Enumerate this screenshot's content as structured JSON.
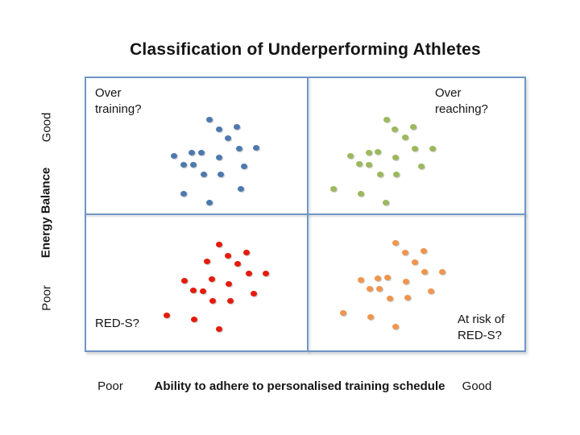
{
  "title": "Classification of Underperforming Athletes",
  "y_axis": {
    "label": "Energy Balance",
    "top_label": "Good",
    "bottom_label": "Poor"
  },
  "x_axis": {
    "label": "Ability to adhere to personalised training schedule",
    "left_label": "Poor",
    "right_label": "Good"
  },
  "quadrant_labels": {
    "top_left": [
      "Over",
      "training?"
    ],
    "top_right": [
      "Over",
      "reaching?"
    ],
    "bottom_left": [
      "RED-S?"
    ],
    "bottom_right": [
      "At risk of",
      "RED-S?"
    ]
  },
  "colors": {
    "quadrant_border": "#6f96c6",
    "blue_dots": "#4d79af",
    "green_dots": "#9bb95c",
    "red_dots": "#e51b0d",
    "orange_dots": "#f0954d",
    "text": "#151515"
  },
  "chart_data": {
    "type": "scatter",
    "title": "Classification of Underperforming Athletes",
    "xlabel": "Ability to adhere to personalised training schedule",
    "ylabel": "Energy Balance",
    "x_axis_ticks": [
      "Poor",
      "Good"
    ],
    "y_axis_ticks": [
      "Poor",
      "Good"
    ],
    "layout": "2x2 quadrant grid, no numeric axes, no legend, no gridlines",
    "axes_note": "Qualitative axes. Point coordinates are percent of plot area: x 0=Poor(left) to 100=Good(right); y 0=Poor(bottom) to 100=Good(top).",
    "series": [
      {
        "name": "Over training?",
        "quadrant": "top-left",
        "color": "#4d79af",
        "points": [
          [
            28.3,
            84.5
          ],
          [
            30.4,
            80.9
          ],
          [
            34.5,
            81.7
          ],
          [
            32.5,
            77.6
          ],
          [
            35.0,
            73.9
          ],
          [
            38.9,
            74.0
          ],
          [
            20.2,
            71.3
          ],
          [
            24.3,
            72.4
          ],
          [
            26.5,
            72.5
          ],
          [
            30.5,
            70.6
          ],
          [
            22.4,
            68.1
          ],
          [
            24.6,
            67.9
          ],
          [
            36.2,
            67.3
          ],
          [
            27.0,
            64.6
          ],
          [
            30.8,
            64.6
          ],
          [
            35.4,
            59.2
          ],
          [
            22.5,
            57.5
          ],
          [
            28.3,
            54.1
          ]
        ]
      },
      {
        "name": "Over reaching?",
        "quadrant": "top-right",
        "color": "#9bb95c",
        "points": [
          [
            68.4,
            84.5
          ],
          [
            70.3,
            80.9
          ],
          [
            74.4,
            81.8
          ],
          [
            72.7,
            77.8
          ],
          [
            74.8,
            73.8
          ],
          [
            78.8,
            73.9
          ],
          [
            60.2,
            71.3
          ],
          [
            64.4,
            72.5
          ],
          [
            66.5,
            72.6
          ],
          [
            70.4,
            70.6
          ],
          [
            62.3,
            68.2
          ],
          [
            64.5,
            68.1
          ],
          [
            76.2,
            67.3
          ],
          [
            66.9,
            64.5
          ],
          [
            70.7,
            64.5
          ],
          [
            56.3,
            59.3
          ],
          [
            62.5,
            57.5
          ],
          [
            68.2,
            54.1
          ]
        ]
      },
      {
        "name": "RED-S?",
        "quadrant": "bottom-left",
        "color": "#e51b0d",
        "points": [
          [
            30.5,
            39.0
          ],
          [
            32.5,
            35.0
          ],
          [
            36.6,
            36.2
          ],
          [
            27.8,
            32.9
          ],
          [
            34.7,
            31.9
          ],
          [
            37.2,
            28.4
          ],
          [
            41.0,
            28.4
          ],
          [
            22.6,
            25.9
          ],
          [
            28.8,
            26.4
          ],
          [
            32.7,
            24.6
          ],
          [
            24.6,
            22.4
          ],
          [
            26.8,
            22.2
          ],
          [
            38.4,
            21.3
          ],
          [
            29.0,
            18.7
          ],
          [
            33.0,
            18.7
          ],
          [
            18.6,
            13.2
          ],
          [
            24.8,
            11.8
          ],
          [
            30.5,
            8.4
          ]
        ]
      },
      {
        "name": "At risk of RED-S?",
        "quadrant": "bottom-right",
        "color": "#f0954d",
        "points": [
          [
            70.5,
            39.6
          ],
          [
            72.7,
            36.1
          ],
          [
            76.8,
            36.7
          ],
          [
            74.9,
            32.6
          ],
          [
            77.0,
            29.0
          ],
          [
            81.1,
            29.1
          ],
          [
            62.6,
            26.2
          ],
          [
            66.5,
            26.9
          ],
          [
            68.7,
            27.1
          ],
          [
            72.8,
            25.6
          ],
          [
            64.6,
            22.9
          ],
          [
            66.7,
            22.9
          ],
          [
            78.5,
            22.2
          ],
          [
            69.1,
            19.5
          ],
          [
            73.1,
            19.6
          ],
          [
            58.6,
            14.3
          ],
          [
            64.8,
            12.6
          ],
          [
            70.4,
            9.2
          ]
        ]
      }
    ]
  }
}
